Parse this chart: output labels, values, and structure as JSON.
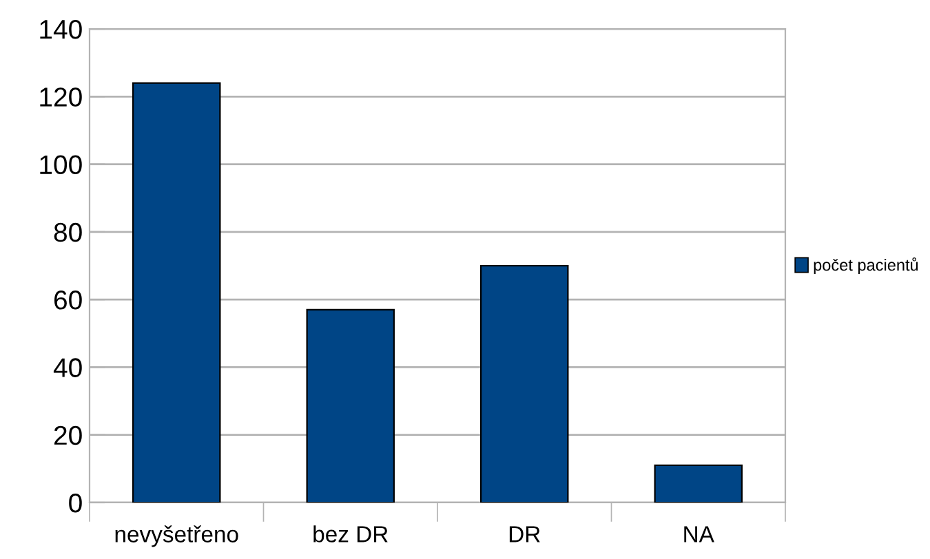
{
  "chart_data": {
    "type": "bar",
    "categories": [
      "nevyšetřeno",
      "bez DR",
      "DR",
      "NA"
    ],
    "series": [
      {
        "name": "počet pacientů",
        "color": "#004586",
        "values": [
          124,
          57,
          70,
          11
        ]
      }
    ],
    "ylim": [
      0,
      140
    ],
    "yticks": [
      0,
      20,
      40,
      60,
      80,
      100,
      120,
      140
    ],
    "grid": "y",
    "legend": "right"
  }
}
